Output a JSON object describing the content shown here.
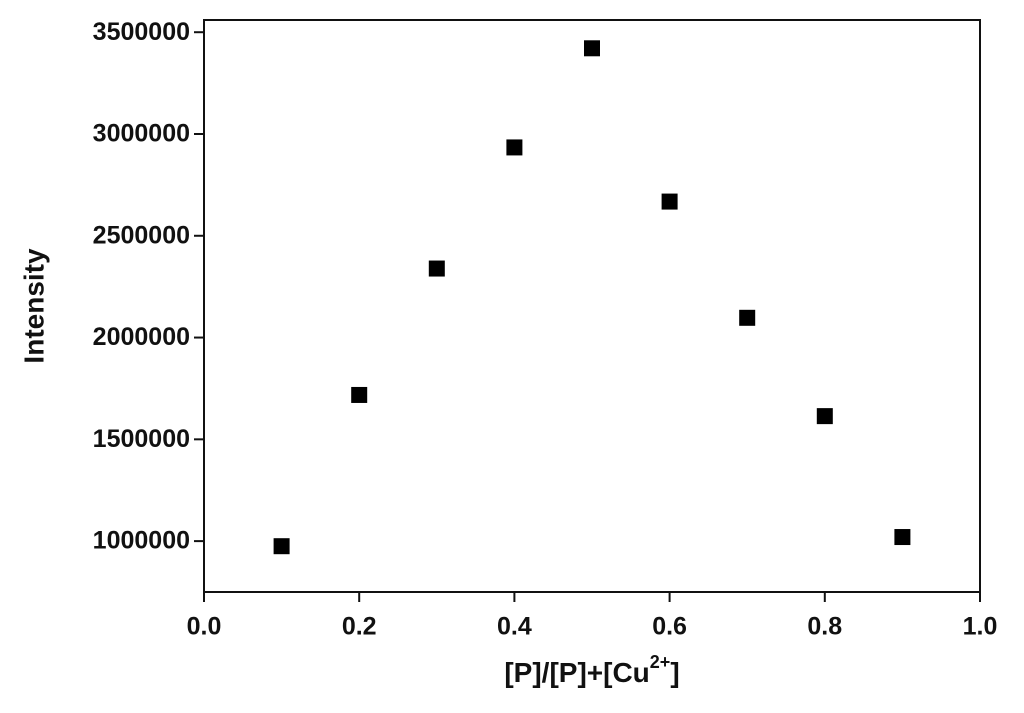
{
  "chart_data": {
    "type": "scatter",
    "x_label": [
      "[P]/[P]+[Cu",
      "2+",
      "]"
    ],
    "y_label": "Intensity",
    "series": [
      {
        "name": "Intensity",
        "color": "#000000",
        "x": [
          0.1,
          0.2,
          0.3,
          0.4,
          0.5,
          0.6,
          0.7,
          0.8,
          0.9
        ],
        "values": [
          975000,
          1718000,
          2339000,
          2934000,
          3421000,
          2668000,
          2097000,
          1614000,
          1020000
        ]
      }
    ],
    "xlim": [
      0.0,
      1.0
    ],
    "xticks": [
      {
        "value": 0.0,
        "label": "0.0"
      },
      0.2,
      0.4,
      0.6,
      0.8,
      {
        "value": 1.0,
        "label": "1.0"
      }
    ],
    "ylim": [
      750000,
      3560000
    ],
    "yticks": [
      1000000,
      1500000,
      2000000,
      2500000,
      3000000,
      3500000
    ],
    "grid": false
  }
}
